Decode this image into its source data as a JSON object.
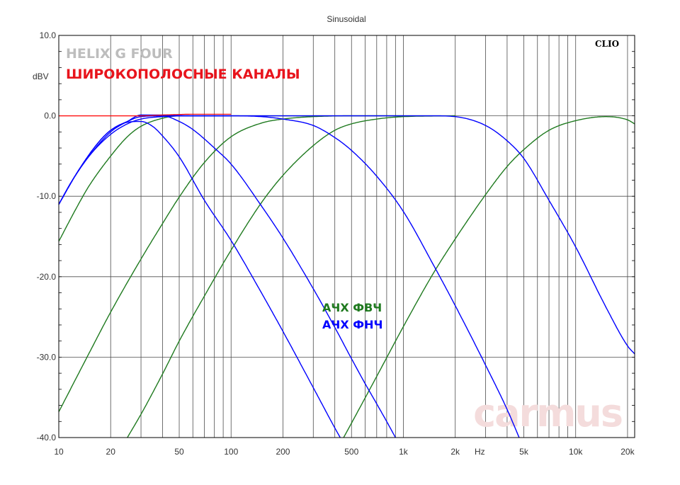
{
  "chart_data": {
    "type": "line",
    "title": "Sinusoidal",
    "brand_label": "CLIO",
    "xlabel": "Hz",
    "ylabel": "dBV",
    "x_scale": "log",
    "xlim": [
      10,
      22000
    ],
    "ylim": [
      -40,
      10
    ],
    "grid": true,
    "y_ticks": [
      "10.0",
      "0.0",
      "-10.0",
      "-20.0",
      "-30.0",
      "-40.0"
    ],
    "y_tick_values": [
      10,
      0,
      -10,
      -20,
      -30,
      -40
    ],
    "x_ticks": [
      "10",
      "20",
      "50",
      "100",
      "200",
      "500",
      "1k",
      "2k",
      "5k",
      "10k",
      "20k"
    ],
    "x_tick_values": [
      10,
      20,
      50,
      100,
      200,
      500,
      1000,
      2000,
      5000,
      10000,
      20000
    ],
    "annotations": {
      "heading": "HELIX G FOUR",
      "subheading": "ШИРОКОПОЛОСНЫЕ КАНАЛЫ",
      "hpf_label": "АЧХ ФВЧ",
      "lpf_label": "АЧХ ФНЧ",
      "watermark": "carmus"
    },
    "colors": {
      "hpf": "#1f7a1f",
      "lpf": "#0000ff",
      "reference": "#ff0000",
      "heading": "#bdbdbd",
      "subheading": "#e8141c",
      "watermark": "#f4dcdc"
    },
    "series": [
      {
        "group": "hpf",
        "points": [
          [
            10,
            -15.6
          ],
          [
            13,
            -11
          ],
          [
            15,
            -8.7
          ],
          [
            20,
            -5
          ],
          [
            25,
            -2.6
          ],
          [
            30,
            -1.3
          ],
          [
            40,
            -0.3
          ],
          [
            50,
            0
          ],
          [
            100,
            0
          ],
          [
            1000,
            0
          ]
        ]
      },
      {
        "group": "hpf",
        "points": [
          [
            10,
            -36.8
          ],
          [
            15,
            -29.5
          ],
          [
            20,
            -24.4
          ],
          [
            30,
            -17.8
          ],
          [
            40,
            -13.4
          ],
          [
            50,
            -10.1
          ],
          [
            70,
            -5.8
          ],
          [
            100,
            -2.6
          ],
          [
            150,
            -0.9
          ],
          [
            200,
            -0.4
          ],
          [
            300,
            -0.1
          ],
          [
            500,
            0
          ],
          [
            2000,
            0
          ]
        ]
      },
      {
        "group": "hpf",
        "points": [
          [
            25,
            -40
          ],
          [
            30,
            -37.1
          ],
          [
            40,
            -32.1
          ],
          [
            50,
            -28
          ],
          [
            70,
            -22.4
          ],
          [
            100,
            -16.7
          ],
          [
            150,
            -10.8
          ],
          [
            200,
            -7.4
          ],
          [
            300,
            -3.7
          ],
          [
            400,
            -1.8
          ],
          [
            500,
            -1
          ],
          [
            700,
            -0.4
          ],
          [
            1000,
            -0.1
          ],
          [
            2000,
            0
          ]
        ]
      },
      {
        "group": "hpf",
        "points": [
          [
            450,
            -40
          ],
          [
            500,
            -38.2
          ],
          [
            700,
            -32.4
          ],
          [
            1000,
            -26.2
          ],
          [
            1500,
            -19.5
          ],
          [
            2000,
            -15.3
          ],
          [
            3000,
            -9.8
          ],
          [
            4000,
            -6.3
          ],
          [
            5000,
            -4.2
          ],
          [
            7000,
            -1.8
          ],
          [
            10000,
            -0.6
          ],
          [
            15000,
            -0.1
          ],
          [
            20000,
            -0.5
          ],
          [
            22000,
            -1
          ]
        ]
      },
      {
        "group": "lpf",
        "points": [
          [
            10,
            -11
          ],
          [
            12,
            -8
          ],
          [
            15,
            -5
          ],
          [
            20,
            -2.3
          ],
          [
            25,
            -1
          ],
          [
            30,
            -0.4
          ],
          [
            40,
            -0.1
          ],
          [
            60,
            0
          ],
          [
            100,
            0
          ]
        ]
      },
      {
        "group": "lpf",
        "points": [
          [
            10,
            -11
          ],
          [
            12,
            -8
          ],
          [
            15,
            -5
          ],
          [
            20,
            -2
          ],
          [
            25,
            -0.7
          ],
          [
            30,
            0.1
          ],
          [
            40,
            0.1
          ],
          [
            60,
            0
          ],
          [
            100,
            0
          ]
        ]
      },
      {
        "group": "lpf",
        "points": [
          [
            10,
            -11
          ],
          [
            13,
            -6.8
          ],
          [
            17,
            -3.3
          ],
          [
            20,
            -1.8
          ],
          [
            25,
            -0.8
          ],
          [
            30,
            -0.7
          ],
          [
            35,
            -1.3
          ],
          [
            40,
            -2.5
          ],
          [
            50,
            -5.1
          ],
          [
            70,
            -10.5
          ],
          [
            100,
            -15.5
          ],
          [
            150,
            -22
          ],
          [
            200,
            -26.8
          ],
          [
            300,
            -33.8
          ],
          [
            400,
            -38.8
          ],
          [
            430,
            -40
          ]
        ]
      },
      {
        "group": "lpf",
        "points": [
          [
            10,
            -11
          ],
          [
            13,
            -6.8
          ],
          [
            17,
            -3.3
          ],
          [
            20,
            -1.8
          ],
          [
            25,
            -0.7
          ],
          [
            30,
            -0.1
          ],
          [
            40,
            0
          ],
          [
            50,
            -0.7
          ],
          [
            60,
            -1.7
          ],
          [
            80,
            -4
          ],
          [
            100,
            -6
          ],
          [
            150,
            -11.2
          ],
          [
            200,
            -15.2
          ],
          [
            300,
            -21.5
          ],
          [
            400,
            -26.3
          ],
          [
            500,
            -30.2
          ],
          [
            600,
            -33.3
          ],
          [
            700,
            -35.8
          ],
          [
            800,
            -38
          ],
          [
            900,
            -40
          ]
        ]
      },
      {
        "group": "lpf",
        "points": [
          [
            30,
            0
          ],
          [
            100,
            0
          ],
          [
            150,
            -0.1
          ],
          [
            200,
            -0.4
          ],
          [
            300,
            -1.2
          ],
          [
            400,
            -2.7
          ],
          [
            500,
            -4.3
          ],
          [
            700,
            -7.5
          ],
          [
            1000,
            -11.9
          ],
          [
            1500,
            -18.6
          ],
          [
            2000,
            -23.6
          ],
          [
            3000,
            -31
          ],
          [
            4000,
            -36.5
          ],
          [
            4700,
            -40
          ]
        ]
      },
      {
        "group": "lpf",
        "points": [
          [
            30,
            0
          ],
          [
            1000,
            0
          ],
          [
            1500,
            0
          ],
          [
            2000,
            -0.1
          ],
          [
            3000,
            -1.2
          ],
          [
            4000,
            -3.1
          ],
          [
            5000,
            -5.3
          ],
          [
            7000,
            -10.5
          ],
          [
            10000,
            -16.3
          ],
          [
            15000,
            -23.8
          ],
          [
            20000,
            -28.6
          ],
          [
            22000,
            -29.6
          ]
        ]
      },
      {
        "group": "reference",
        "points": [
          [
            10,
            0
          ],
          [
            30,
            0
          ],
          [
            40,
            0.1
          ],
          [
            60,
            0.2
          ],
          [
            100,
            0.2
          ]
        ]
      }
    ]
  }
}
